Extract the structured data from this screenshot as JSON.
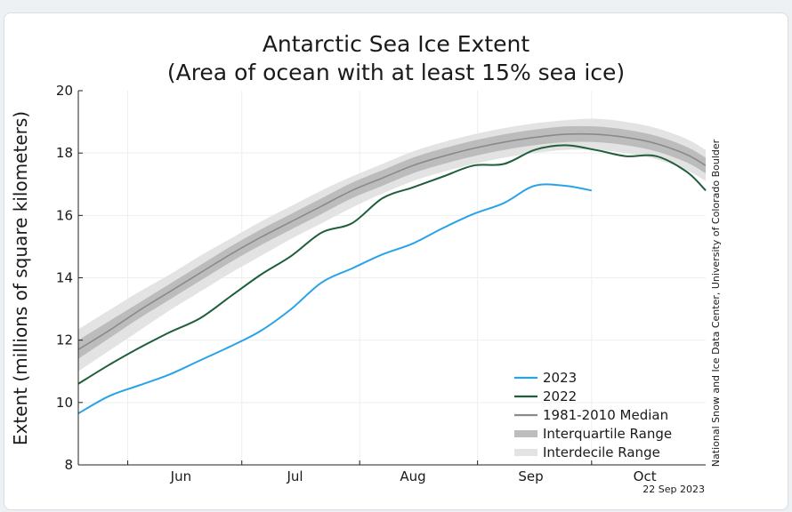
{
  "chart_data": {
    "type": "line",
    "title": "Antarctic Sea Ice Extent",
    "subtitle": "(Area of ocean with at least 15% sea ice)",
    "ylabel": "Extent (millions of square kilometers)",
    "xlabel": "",
    "ylim": [
      8,
      20
    ],
    "yticks": [
      "8",
      "10",
      "12",
      "14",
      "16",
      "18",
      "20"
    ],
    "x_domain": [
      "May 19",
      "Oct 31"
    ],
    "month_ticks": [
      {
        "label": "Jun",
        "date": "Jun 15"
      },
      {
        "label": "Jul",
        "date": "Jul 15"
      },
      {
        "label": "Aug",
        "date": "Aug 15"
      },
      {
        "label": "Sep",
        "date": "Sep 15"
      },
      {
        "label": "Oct",
        "date": "Oct 15"
      }
    ],
    "month_boundaries": [
      "Jun 1",
      "Jul 1",
      "Aug 1",
      "Sep 1",
      "Oct 1"
    ],
    "grid": true,
    "legend_position": "bottom-right",
    "series": [
      {
        "name": "2023",
        "color": "#29a3e8",
        "x": [
          "May 19",
          "May 27",
          "Jun 4",
          "Jun 12",
          "Jun 20",
          "Jun 28",
          "Jul 6",
          "Jul 14",
          "Jul 22",
          "Jul 30",
          "Aug 7",
          "Aug 15",
          "Aug 23",
          "Aug 31",
          "Sep 8",
          "Sep 16",
          "Sep 24",
          "Oct 1"
        ],
        "values": [
          9.65,
          10.2,
          10.55,
          10.9,
          11.35,
          11.8,
          12.3,
          13.0,
          13.85,
          14.3,
          14.75,
          15.1,
          15.6,
          16.05,
          16.4,
          16.95,
          16.95,
          16.8
        ]
      },
      {
        "name": "2022",
        "color": "#1f5e3a",
        "x": [
          "May 19",
          "May 27",
          "Jun 4",
          "Jun 12",
          "Jun 20",
          "Jun 28",
          "Jul 6",
          "Jul 14",
          "Jul 22",
          "Jul 30",
          "Aug 7",
          "Aug 15",
          "Aug 23",
          "Aug 31",
          "Sep 8",
          "Sep 16",
          "Sep 24",
          "Oct 2",
          "Oct 10",
          "Oct 18",
          "Oct 26",
          "Oct 31"
        ],
        "values": [
          10.6,
          11.2,
          11.75,
          12.25,
          12.7,
          13.4,
          14.1,
          14.7,
          15.45,
          15.75,
          16.55,
          16.9,
          17.25,
          17.6,
          17.65,
          18.1,
          18.25,
          18.1,
          17.9,
          17.9,
          17.4,
          16.8
        ]
      },
      {
        "name": "1981-2010 Median",
        "color": "#8a8a8a",
        "x": [
          "May 19",
          "May 27",
          "Jun 4",
          "Jun 12",
          "Jun 20",
          "Jun 28",
          "Jul 6",
          "Jul 14",
          "Jul 22",
          "Jul 30",
          "Aug 7",
          "Aug 15",
          "Aug 23",
          "Aug 31",
          "Sep 8",
          "Sep 16",
          "Sep 24",
          "Oct 2",
          "Oct 10",
          "Oct 18",
          "Oct 26",
          "Oct 31"
        ],
        "values": [
          11.7,
          12.3,
          12.95,
          13.55,
          14.15,
          14.75,
          15.3,
          15.8,
          16.3,
          16.8,
          17.2,
          17.6,
          17.9,
          18.15,
          18.35,
          18.5,
          18.6,
          18.6,
          18.5,
          18.3,
          17.95,
          17.6
        ]
      }
    ],
    "ranges": [
      {
        "name": "Interquartile Range",
        "color": "#bcbcbc",
        "lower": [
          11.4,
          12.05,
          12.7,
          13.3,
          13.9,
          14.5,
          15.05,
          15.55,
          16.05,
          16.55,
          16.95,
          17.35,
          17.65,
          17.9,
          18.1,
          18.25,
          18.35,
          18.35,
          18.25,
          18.05,
          17.7,
          17.35
        ],
        "upper": [
          12.0,
          12.6,
          13.2,
          13.8,
          14.4,
          15.0,
          15.55,
          16.05,
          16.55,
          17.05,
          17.45,
          17.85,
          18.15,
          18.4,
          18.6,
          18.75,
          18.85,
          18.85,
          18.75,
          18.55,
          18.2,
          17.85
        ]
      },
      {
        "name": "Interdecile Range",
        "color": "#e3e3e3",
        "lower": [
          11.0,
          11.65,
          12.3,
          12.95,
          13.55,
          14.15,
          14.7,
          15.25,
          15.75,
          16.25,
          16.7,
          17.1,
          17.4,
          17.65,
          17.85,
          18.0,
          18.1,
          18.1,
          18.0,
          17.8,
          17.45,
          17.1
        ],
        "upper": [
          12.35,
          12.95,
          13.55,
          14.1,
          14.7,
          15.25,
          15.8,
          16.3,
          16.8,
          17.25,
          17.65,
          18.05,
          18.35,
          18.6,
          18.8,
          18.95,
          19.05,
          19.1,
          19.0,
          18.8,
          18.45,
          18.1
        ]
      }
    ],
    "legend": [
      {
        "label": "2023",
        "color": "#29a3e8",
        "kind": "line"
      },
      {
        "label": "2022",
        "color": "#1f5e3a",
        "kind": "line"
      },
      {
        "label": "1981-2010 Median",
        "color": "#8a8a8a",
        "kind": "line"
      },
      {
        "label": "Interquartile Range",
        "color": "#bcbcbc",
        "kind": "band"
      },
      {
        "label": "Interdecile Range",
        "color": "#e3e3e3",
        "kind": "band"
      }
    ],
    "credit": "National Snow and Ice Data Center, University of Colorado Boulder",
    "date_stamp": "22 Sep 2023"
  }
}
